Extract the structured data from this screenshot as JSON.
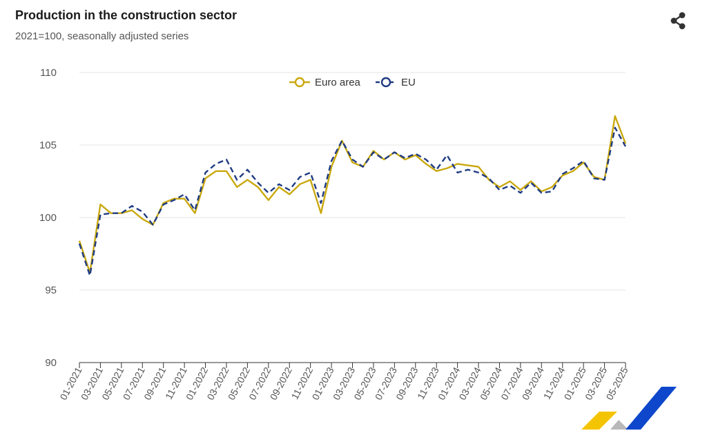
{
  "header": {
    "title": "Production in the construction sector",
    "subtitle": "2021=100, seasonally adjusted series"
  },
  "icons": {
    "share": "share-icon"
  },
  "colors": {
    "euro_area": "#c9a80e",
    "eu": "#1f3b82",
    "grid": "#e6e6e6",
    "axis": "#333333",
    "logo_yellow": "#f5c400",
    "logo_blue": "#0e47cb",
    "logo_grey": "#b8b8b8"
  },
  "chart_data": {
    "type": "line",
    "title": "Production in the construction sector",
    "subtitle": "2021=100, seasonally adjusted series",
    "ylim": [
      90,
      110
    ],
    "y_ticks": [
      110,
      105,
      100,
      95,
      90
    ],
    "grid": true,
    "legend_position": "top-center",
    "x": [
      "01-2021",
      "02-2021",
      "03-2021",
      "04-2021",
      "05-2021",
      "06-2021",
      "07-2021",
      "08-2021",
      "09-2021",
      "10-2021",
      "11-2021",
      "12-2021",
      "01-2022",
      "02-2022",
      "03-2022",
      "04-2022",
      "05-2022",
      "06-2022",
      "07-2022",
      "08-2022",
      "09-2022",
      "10-2022",
      "11-2022",
      "12-2022",
      "01-2023",
      "02-2023",
      "03-2023",
      "04-2023",
      "05-2023",
      "06-2023",
      "07-2023",
      "08-2023",
      "09-2023",
      "10-2023",
      "11-2023",
      "12-2023",
      "01-2024",
      "02-2024",
      "03-2024",
      "04-2024",
      "05-2024",
      "06-2024",
      "07-2024",
      "08-2024",
      "09-2024",
      "10-2024",
      "11-2024",
      "12-2024",
      "01-2025",
      "02-2025",
      "03-2025",
      "04-2025",
      "05-2025"
    ],
    "x_tick_labels": [
      "01-2021",
      "03-2021",
      "05-2021",
      "07-2021",
      "09-2021",
      "11-2021",
      "01-2022",
      "03-2022",
      "05-2022",
      "07-2022",
      "09-2022",
      "11-2022",
      "01-2023",
      "03-2023",
      "05-2023",
      "07-2023",
      "09-2023",
      "11-2023",
      "01-2024",
      "03-2024",
      "05-2024",
      "07-2024",
      "09-2024",
      "11-2024",
      "01-2025",
      "03-2025",
      "05-2025"
    ],
    "series": [
      {
        "name": "Euro area",
        "values": [
          98.4,
          96.2,
          100.9,
          100.3,
          100.3,
          100.5,
          99.9,
          99.5,
          101.0,
          101.3,
          101.3,
          100.3,
          102.7,
          103.2,
          103.2,
          102.1,
          102.6,
          102.1,
          101.2,
          102.1,
          101.6,
          102.3,
          102.6,
          100.3,
          103.5,
          105.3,
          103.8,
          103.5,
          104.6,
          104.0,
          104.5,
          104.0,
          104.3,
          103.7,
          103.2,
          103.4,
          103.7,
          103.6,
          103.5,
          102.6,
          102.1,
          102.5,
          101.9,
          102.5,
          101.8,
          102.1,
          102.9,
          103.2,
          103.8,
          102.8,
          102.6,
          107.0,
          105.1
        ]
      },
      {
        "name": "EU",
        "values": [
          98.2,
          96.0,
          100.2,
          100.3,
          100.3,
          100.8,
          100.4,
          99.5,
          100.9,
          101.2,
          101.6,
          100.5,
          103.1,
          103.7,
          104.0,
          102.6,
          103.3,
          102.4,
          101.7,
          102.3,
          101.9,
          102.8,
          103.1,
          101.0,
          103.9,
          105.3,
          104.0,
          103.5,
          104.5,
          104.0,
          104.5,
          104.1,
          104.4,
          104.0,
          103.3,
          104.3,
          103.1,
          103.3,
          103.1,
          102.7,
          101.9,
          102.2,
          101.7,
          102.4,
          101.7,
          101.8,
          103.0,
          103.4,
          103.9,
          102.7,
          102.6,
          106.2,
          104.9
        ]
      }
    ]
  }
}
